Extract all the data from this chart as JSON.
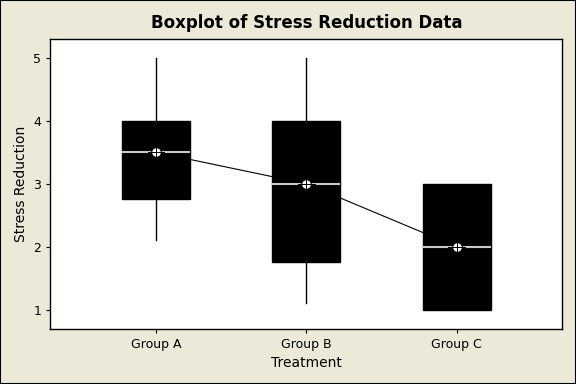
{
  "title": "Boxplot of Stress Reduction Data",
  "xlabel": "Treatment",
  "ylabel": "Stress Reduction",
  "groups": [
    "Group A",
    "Group B",
    "Group C"
  ],
  "box_data": [
    {
      "whislo": 2.1,
      "q1": 2.75,
      "med": 3.5,
      "q3": 4.0,
      "whishi": 5.0,
      "mean": 3.5
    },
    {
      "whislo": 1.1,
      "q1": 1.75,
      "med": 3.0,
      "q3": 4.0,
      "whishi": 5.0,
      "mean": 3.0
    },
    {
      "whislo": 1.0,
      "q1": 1.0,
      "med": 2.0,
      "q3": 3.0,
      "whishi": 3.0,
      "mean": 2.0
    }
  ],
  "ylim": [
    0.7,
    5.3
  ],
  "yticks": [
    1,
    2,
    3,
    4,
    5
  ],
  "box_facecolor": "#c8c8c8",
  "box_edgecolor": "#000000",
  "median_color": "#c8c8c8",
  "whisker_color": "#000000",
  "cap_color": "#000000",
  "mean_line_color": "#000000",
  "background_color": "#ede9d8",
  "plot_bg_color": "#ffffff",
  "title_fontsize": 12,
  "label_fontsize": 10,
  "tick_fontsize": 9,
  "box_width": 0.45,
  "xlim": [
    0.3,
    3.7
  ]
}
